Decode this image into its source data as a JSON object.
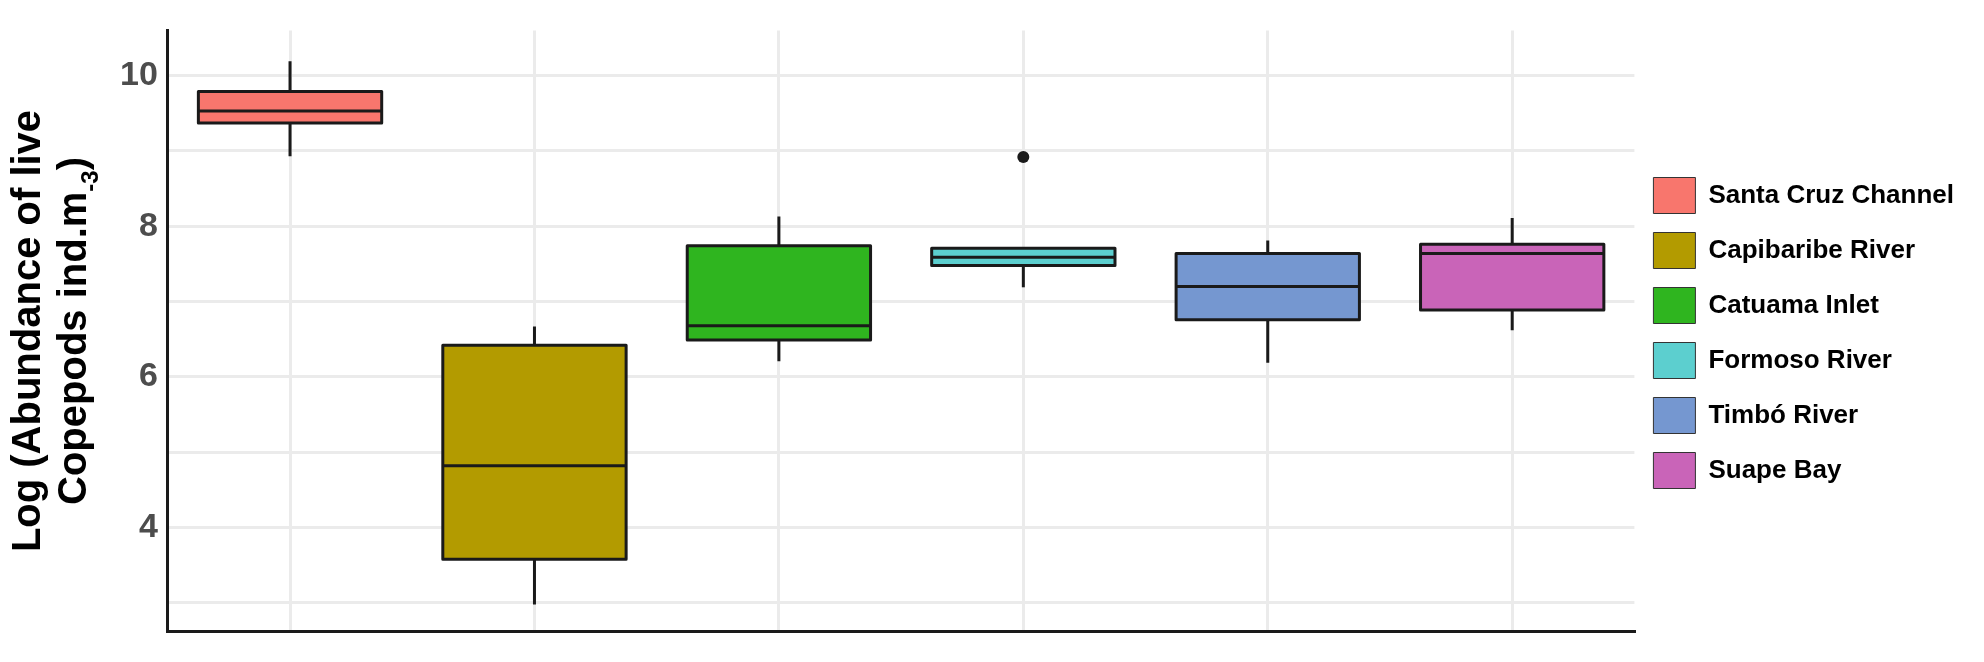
{
  "chart_data": {
    "type": "box",
    "ylabel": "Log (Abundance of live Copepods ind.m$_{-3}$)",
    "categories": [
      null,
      null,
      null,
      null,
      null,
      null
    ],
    "series": [
      {
        "name": "Santa Cruz Channel",
        "color": "#f8766d",
        "boxes": [
          {
            "low": 8.93,
            "q1": 9.37,
            "median": 9.53,
            "q3": 9.79,
            "high": 10.19
          },
          null,
          null,
          null,
          null,
          null
        ]
      },
      {
        "name": "Capibaribe River",
        "color": "#b39b00",
        "boxes": [
          null,
          {
            "low": 2.98,
            "q1": 3.58,
            "median": 4.82,
            "q3": 6.42,
            "high": 6.67
          },
          null,
          null,
          null,
          null
        ]
      },
      {
        "name": "Catuama Inlet",
        "color": "#2fb51f",
        "boxes": [
          null,
          null,
          {
            "low": 6.21,
            "q1": 6.49,
            "median": 6.68,
            "q3": 7.74,
            "high": 8.13
          },
          null,
          null,
          null
        ]
      },
      {
        "name": "Formoso River",
        "color": "#5ccfcf",
        "boxes": [
          null,
          null,
          null,
          {
            "low": 7.19,
            "q1": 7.48,
            "median": 7.59,
            "q3": 7.71,
            "high": 7.71,
            "outliers": [
              8.92
            ]
          },
          null,
          null
        ]
      },
      {
        "name": "Timbó River",
        "color": "#7597d0",
        "boxes": [
          null,
          null,
          null,
          null,
          {
            "low": 6.19,
            "q1": 6.76,
            "median": 7.2,
            "q3": 7.64,
            "high": 7.81
          },
          null
        ]
      },
      {
        "name": "Suape Bay",
        "color": "#c964b8",
        "boxes": [
          null,
          null,
          null,
          null,
          null,
          {
            "low": 6.62,
            "q1": 6.89,
            "median": 7.64,
            "q3": 7.76,
            "high": 8.11
          }
        ]
      }
    ],
    "ylim": [
      2.62,
      10.6
    ],
    "yticks": [
      {
        "value": 3,
        "label": null
      },
      4,
      {
        "value": 5,
        "label": null
      },
      6,
      {
        "value": 7,
        "label": null
      },
      8,
      {
        "value": 9,
        "label": null
      },
      10
    ],
    "grid": true,
    "legend": "right",
    "tick_labels": "y"
  }
}
